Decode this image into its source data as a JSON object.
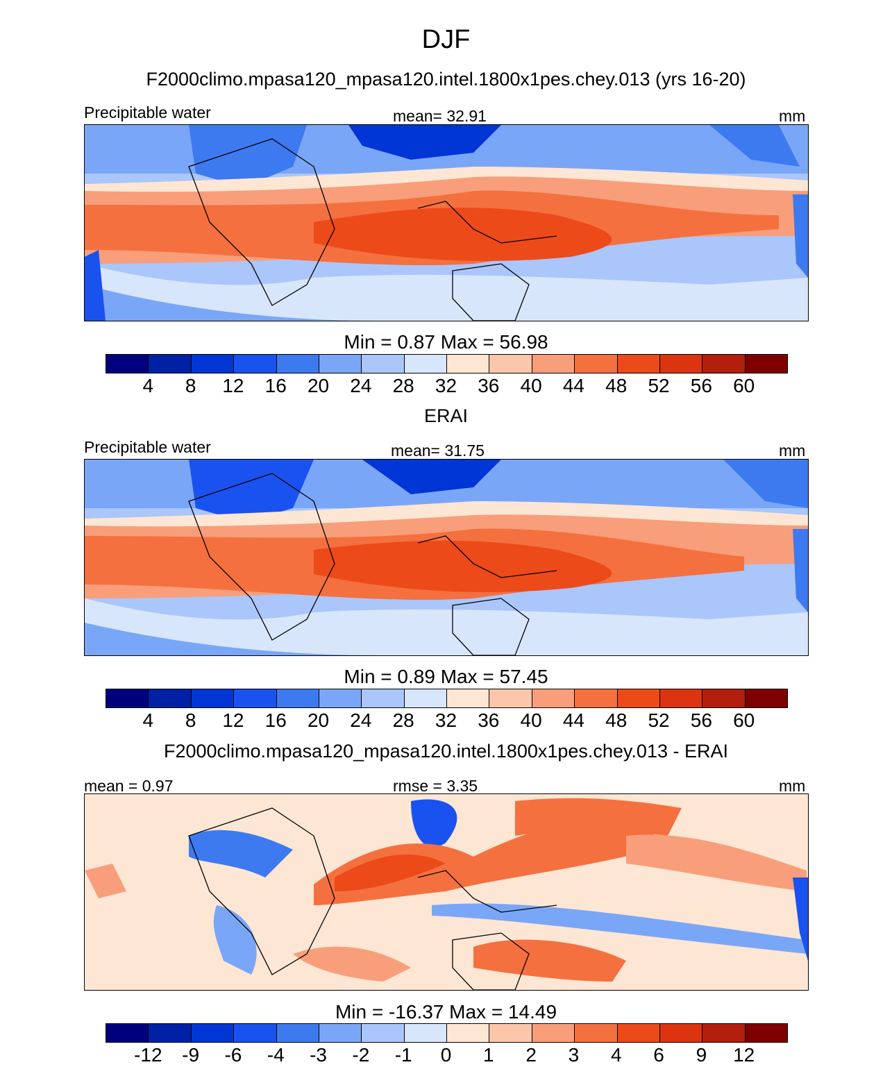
{
  "title": "DJF",
  "chart_data": [
    {
      "type": "heatmap",
      "title": "F2000climo.mpasa120_mpasa120.intel.1800x1pes.chey.013 (yrs 16-20)",
      "left_label": "Precipitable water",
      "center_label": "mean=  32.91",
      "units": "mm",
      "min": 0.87,
      "max": 56.98,
      "minmax_text": "Min =   0.87 Max =  56.98",
      "levels": [
        "4",
        "8",
        "12",
        "16",
        "20",
        "24",
        "28",
        "32",
        "36",
        "40",
        "44",
        "48",
        "52",
        "56",
        "60"
      ],
      "colors": [
        "#00007e",
        "#0021a6",
        "#0035d6",
        "#1a52f0",
        "#3d7af0",
        "#7aa6f7",
        "#aac6fa",
        "#d8e6fb",
        "#fde6d4",
        "#fcc6aa",
        "#f99e7a",
        "#f5703f",
        "#ec4a18",
        "#dc3410",
        "#b31e0d",
        "#7f0000"
      ]
    },
    {
      "type": "heatmap",
      "title": "ERAI",
      "left_label": "Precipitable water",
      "center_label": "mean=  31.75",
      "units": "mm",
      "min": 0.89,
      "max": 57.45,
      "minmax_text": "Min =   0.89 Max =  57.45",
      "levels": [
        "4",
        "8",
        "12",
        "16",
        "20",
        "24",
        "28",
        "32",
        "36",
        "40",
        "44",
        "48",
        "52",
        "56",
        "60"
      ],
      "colors": [
        "#00007e",
        "#0021a6",
        "#0035d6",
        "#1a52f0",
        "#3d7af0",
        "#7aa6f7",
        "#aac6fa",
        "#d8e6fb",
        "#fde6d4",
        "#fcc6aa",
        "#f99e7a",
        "#f5703f",
        "#ec4a18",
        "#dc3410",
        "#b31e0d",
        "#7f0000"
      ]
    },
    {
      "type": "heatmap",
      "title": "F2000climo.mpasa120_mpasa120.intel.1800x1pes.chey.013 - ERAI",
      "left_label": "mean =   0.97",
      "center_label": "rmse =   3.35",
      "units": "mm",
      "min": -16.37,
      "max": 14.49,
      "minmax_text": "Min = -16.37 Max =  14.49",
      "levels": [
        "-12",
        "-9",
        "-6",
        "-4",
        "-3",
        "-2",
        "-1",
        "0",
        "1",
        "2",
        "3",
        "4",
        "6",
        "9",
        "12"
      ],
      "colors": [
        "#00007e",
        "#0021a6",
        "#0035d6",
        "#1a52f0",
        "#3d7af0",
        "#7aa6f7",
        "#aac6fa",
        "#d8e6fb",
        "#fde6d4",
        "#fcc6aa",
        "#f99e7a",
        "#f5703f",
        "#ec4a18",
        "#dc3410",
        "#b31e0d",
        "#7f0000"
      ]
    }
  ]
}
